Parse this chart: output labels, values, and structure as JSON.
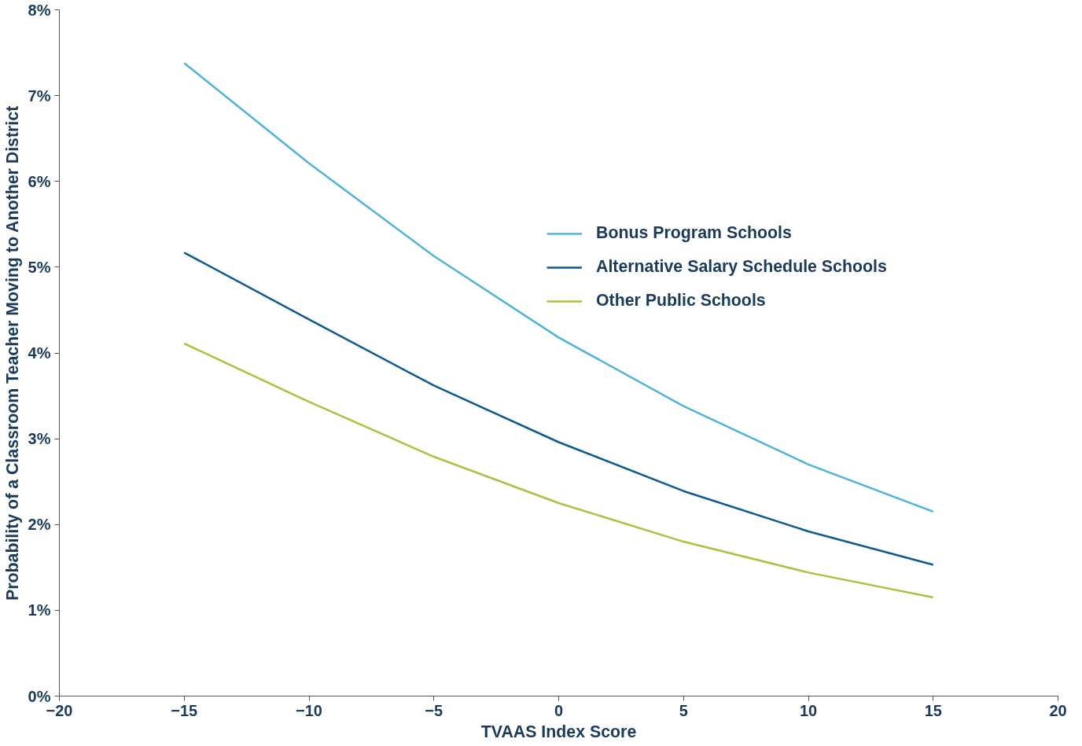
{
  "chart_data": {
    "type": "line",
    "xlabel": "TVAAS Index Score",
    "ylabel": "Probability of a Classroom Teacher Moving to Another District",
    "x": [
      -15,
      -10,
      -5,
      0,
      5,
      10,
      15
    ],
    "series": [
      {
        "name": "Bonus Program Schools",
        "color": "#4fb3d9",
        "values": [
          7.38,
          6.21,
          5.13,
          4.18,
          3.38,
          2.7,
          2.15
        ]
      },
      {
        "name": "Alternative Salary Schedule Schools",
        "color": "#0d5a91",
        "values": [
          5.17,
          4.39,
          3.62,
          2.96,
          2.39,
          1.92,
          1.53
        ]
      },
      {
        "name": "Other Public Schools",
        "color": "#a9c23f",
        "values": [
          4.11,
          3.43,
          2.79,
          2.25,
          1.8,
          1.44,
          1.15
        ]
      }
    ],
    "xlim": [
      -20,
      20
    ],
    "xticks": [
      -20,
      -15,
      -10,
      -5,
      0,
      5,
      10,
      15,
      20
    ],
    "ylim": [
      0,
      8
    ],
    "yticks": [
      {
        "value": 0,
        "label": "0%"
      },
      {
        "value": 1,
        "label": "1%"
      },
      {
        "value": 2,
        "label": "2%"
      },
      {
        "value": 3,
        "label": "3%"
      },
      {
        "value": 4,
        "label": "4%"
      },
      {
        "value": 5,
        "label": "5%"
      },
      {
        "value": 6,
        "label": "6%"
      },
      {
        "value": 7,
        "label": "7%"
      },
      {
        "value": 8,
        "label": "8%"
      }
    ],
    "grid": false,
    "legend": "right",
    "marker": "none",
    "line_style": "solid"
  }
}
